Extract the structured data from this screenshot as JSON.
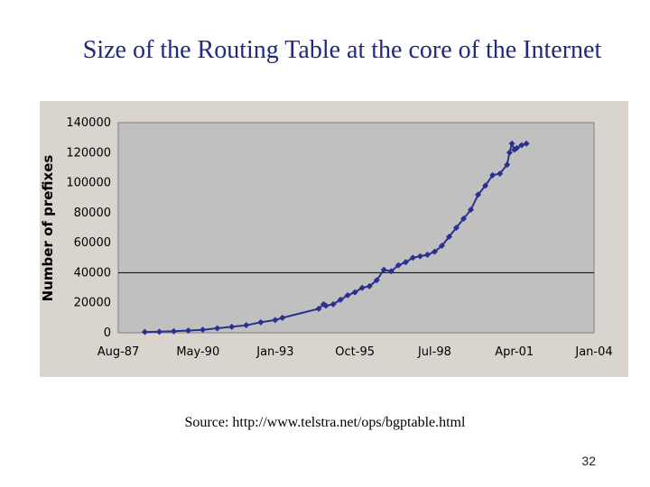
{
  "slide": {
    "title": "Size of the Routing Table at the core of the Internet",
    "source": "Source: http://www.telstra.net/ops/bgptable.html",
    "page_number": "32"
  },
  "colors": {
    "title": "#1f2a7a",
    "chart_frame": "#d9d4cd",
    "plot_area": "#c0c0c0",
    "series": "#2b2f8f",
    "gridline": "#000000"
  },
  "chart_data": {
    "type": "line",
    "title": "",
    "xlabel": "",
    "ylabel": "Number of prefixes",
    "x_ticks": [
      "Aug-87",
      "May-90",
      "Jan-93",
      "Oct-95",
      "Jul-98",
      "Apr-01",
      "Jan-04"
    ],
    "y_ticks": [
      "0",
      "20000",
      "40000",
      "60000",
      "80000",
      "100000",
      "120000",
      "140000"
    ],
    "ylim": [
      0,
      140000
    ],
    "xlim": [
      "1987-08",
      "2004-01"
    ],
    "grid": "horizontal line at 40000 only",
    "legend": "none",
    "marker": "diamond",
    "series": [
      {
        "x": [
          "1988-07",
          "1989-01",
          "1989-07",
          "1990-01",
          "1990-07",
          "1991-01",
          "1991-07",
          "1992-01",
          "1992-07",
          "1993-01",
          "1993-04",
          "1994-07",
          "1994-09",
          "1994-10",
          "1995-01",
          "1995-04",
          "1995-07",
          "1995-10",
          "1996-01",
          "1996-04",
          "1996-07",
          "1996-10",
          "1997-01",
          "1997-04",
          "1997-07",
          "1997-10",
          "1998-01",
          "1998-04",
          "1998-07",
          "1998-10",
          "1999-01",
          "1999-04",
          "1999-07",
          "1999-10",
          "2000-01",
          "2000-04",
          "2000-07",
          "2000-10",
          "2001-01",
          "2001-02",
          "2001-03",
          "2001-04",
          "2001-05",
          "2001-07",
          "2001-09"
        ],
        "y": [
          500,
          700,
          1000,
          1500,
          2000,
          3000,
          4000,
          5000,
          7000,
          8500,
          10000,
          16000,
          19000,
          18000,
          19000,
          22000,
          25000,
          27000,
          30000,
          31000,
          35000,
          42000,
          41000,
          45000,
          47000,
          50000,
          51000,
          52000,
          54000,
          58000,
          64000,
          70000,
          76000,
          82000,
          92000,
          98000,
          105000,
          106000,
          112000,
          120000,
          126000,
          122000,
          123000,
          125000,
          126000
        ]
      }
    ]
  }
}
